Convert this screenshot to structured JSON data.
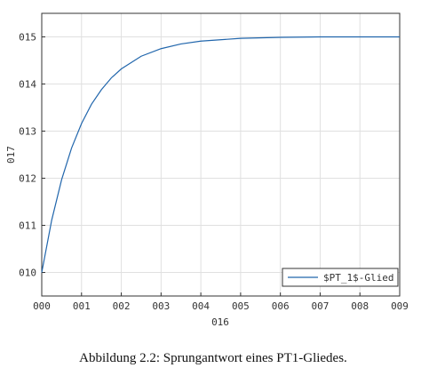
{
  "chart_data": {
    "type": "line",
    "caption": "Abbildung 2.2: Sprungantwort eines PT1-Gliedes.",
    "xlabel": "016",
    "ylabel": "017",
    "x": [
      0,
      0.25,
      0.5,
      0.75,
      1,
      1.25,
      1.5,
      1.75,
      2,
      2.5,
      3,
      3.5,
      4,
      5,
      6,
      7,
      8,
      9
    ],
    "series": [
      {
        "name": "$PT_1$-Glied",
        "color": "#2166ac",
        "values": [
          10,
          11.11,
          11.97,
          12.64,
          13.16,
          13.57,
          13.88,
          14.13,
          14.32,
          14.59,
          14.75,
          14.85,
          14.91,
          14.97,
          14.99,
          15,
          15,
          15
        ]
      }
    ],
    "xlim": [
      0,
      9
    ],
    "ylim": [
      9.5,
      15.5
    ],
    "xticks": [
      {
        "value": 0,
        "label": "000"
      },
      {
        "value": 1,
        "label": "001"
      },
      {
        "value": 2,
        "label": "002"
      },
      {
        "value": 3,
        "label": "003"
      },
      {
        "value": 4,
        "label": "004"
      },
      {
        "value": 5,
        "label": "005"
      },
      {
        "value": 6,
        "label": "006"
      },
      {
        "value": 7,
        "label": "007"
      },
      {
        "value": 8,
        "label": "008"
      },
      {
        "value": 9,
        "label": "009"
      }
    ],
    "yticks": [
      {
        "value": 10,
        "label": "010"
      },
      {
        "value": 11,
        "label": "011"
      },
      {
        "value": 12,
        "label": "012"
      },
      {
        "value": 13,
        "label": "013"
      },
      {
        "value": 14,
        "label": "014"
      },
      {
        "value": 15,
        "label": "015"
      }
    ],
    "grid": true,
    "legend": "lower right"
  }
}
